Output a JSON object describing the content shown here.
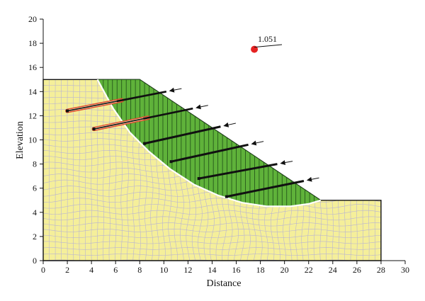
{
  "chart_data": {
    "type": "slope-stability",
    "xlabel": "Distance",
    "ylabel": "Elevation",
    "xlim": [
      0,
      30
    ],
    "ylim": [
      0,
      20
    ],
    "xticks": [
      0,
      2,
      4,
      6,
      8,
      10,
      12,
      14,
      16,
      18,
      20,
      22,
      24,
      26,
      28,
      30
    ],
    "yticks": [
      0,
      2,
      4,
      6,
      8,
      10,
      12,
      14,
      16,
      18,
      20
    ],
    "ground_profile": [
      [
        0,
        0
      ],
      [
        0,
        15
      ],
      [
        8,
        15
      ],
      [
        23,
        5
      ],
      [
        28,
        5
      ],
      [
        28,
        0
      ]
    ],
    "slip_surface": [
      [
        4.5,
        15
      ],
      [
        5.8,
        12.6
      ],
      [
        7.2,
        10.6
      ],
      [
        8.8,
        9.0
      ],
      [
        10.5,
        7.6
      ],
      [
        12.5,
        6.3
      ],
      [
        14.5,
        5.4
      ],
      [
        16.5,
        4.8
      ],
      [
        18.5,
        4.5
      ],
      [
        20.5,
        4.5
      ],
      [
        22,
        4.7
      ],
      [
        23,
        5
      ]
    ],
    "slip_center": {
      "x": 17.5,
      "y": 17.5
    },
    "factor_of_safety": "1.051",
    "anchors": [
      {
        "head": [
          10.2,
          14.0
        ],
        "tail": [
          2.0,
          12.4
        ]
      },
      {
        "head": [
          12.4,
          12.6
        ],
        "tail": [
          4.2,
          10.9
        ]
      },
      {
        "head": [
          14.7,
          11.1
        ],
        "tail": [
          8.4,
          9.7
        ]
      },
      {
        "head": [
          17.0,
          9.6
        ],
        "tail": [
          10.6,
          8.2
        ]
      },
      {
        "head": [
          19.4,
          8.0
        ],
        "tail": [
          12.9,
          6.8
        ]
      },
      {
        "head": [
          21.6,
          6.6
        ],
        "tail": [
          15.2,
          5.3
        ]
      }
    ],
    "colors": {
      "soil": "#f5ef9a",
      "mesh": "#b9b4d2",
      "sliding_mass": "#5fb23a",
      "slip_line": "#ffffff",
      "anchor": "#111111",
      "anchor_outline": "#e05030",
      "center_point": "#e52222"
    }
  }
}
